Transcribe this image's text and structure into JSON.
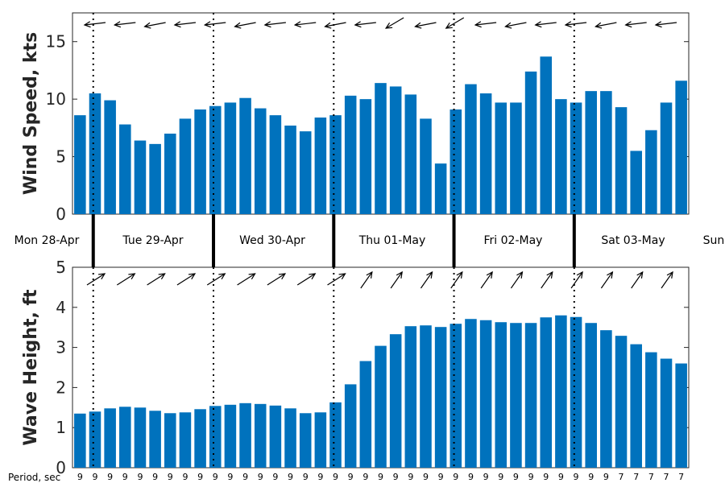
{
  "chart_data": [
    {
      "type": "bar",
      "ylabel": "Wind Speed, kts",
      "ylim": [
        0,
        17.5
      ],
      "yticks": [
        0,
        5,
        10,
        15
      ],
      "values": [
        8.6,
        10.5,
        9.9,
        7.8,
        6.4,
        6.1,
        7.0,
        8.3,
        9.1,
        9.4,
        9.7,
        10.1,
        9.2,
        8.6,
        7.7,
        7.2,
        8.4,
        8.6,
        10.3,
        10.0,
        11.4,
        11.1,
        10.4,
        8.3,
        4.4,
        9.1,
        11.3,
        10.5,
        9.7,
        9.7,
        12.4,
        13.7,
        10.0,
        9.7,
        10.7,
        10.7,
        9.3,
        5.5,
        7.3,
        9.7,
        11.6
      ],
      "direction_arrows": "wind direction arrows drawn above each bar (mostly pointing left / westward)",
      "color": "#0072BD"
    },
    {
      "type": "bar",
      "ylabel": "Wave Height, ft",
      "ylim": [
        0,
        5
      ],
      "yticks": [
        0,
        1,
        2,
        3,
        4,
        5
      ],
      "values": [
        1.35,
        1.4,
        1.48,
        1.52,
        1.5,
        1.42,
        1.36,
        1.38,
        1.46,
        1.54,
        1.57,
        1.61,
        1.59,
        1.55,
        1.48,
        1.36,
        1.38,
        1.63,
        2.08,
        2.66,
        3.04,
        3.33,
        3.53,
        3.55,
        3.51,
        3.59,
        3.71,
        3.68,
        3.63,
        3.61,
        3.61,
        3.75,
        3.8,
        3.76,
        3.61,
        3.43,
        3.29,
        3.08,
        2.88,
        2.72,
        2.6
      ],
      "direction_arrows": "wave direction arrows drawn above bars (pointing up-right / north-east)",
      "color": "#0072BD"
    }
  ],
  "days": [
    "Mon 28-Apr",
    "Tue 29-Apr",
    "Wed 30-Apr",
    "Thu 01-May",
    "Fri 02-May",
    "Sat 03-May",
    "Sun"
  ],
  "period_label": "Period, sec",
  "periods": [
    "9",
    "9",
    "9",
    "9",
    "9",
    "9",
    "9",
    "9",
    "9",
    "9",
    "9",
    "9",
    "9",
    "9",
    "9",
    "9",
    "9",
    "9",
    "9",
    "9",
    "9",
    "9",
    "9",
    "9",
    "9",
    "9",
    "9",
    "9",
    "9",
    "9",
    "9",
    "9",
    "9",
    "9",
    "9",
    "9",
    "7",
    "7",
    "7",
    "7",
    "7"
  ]
}
